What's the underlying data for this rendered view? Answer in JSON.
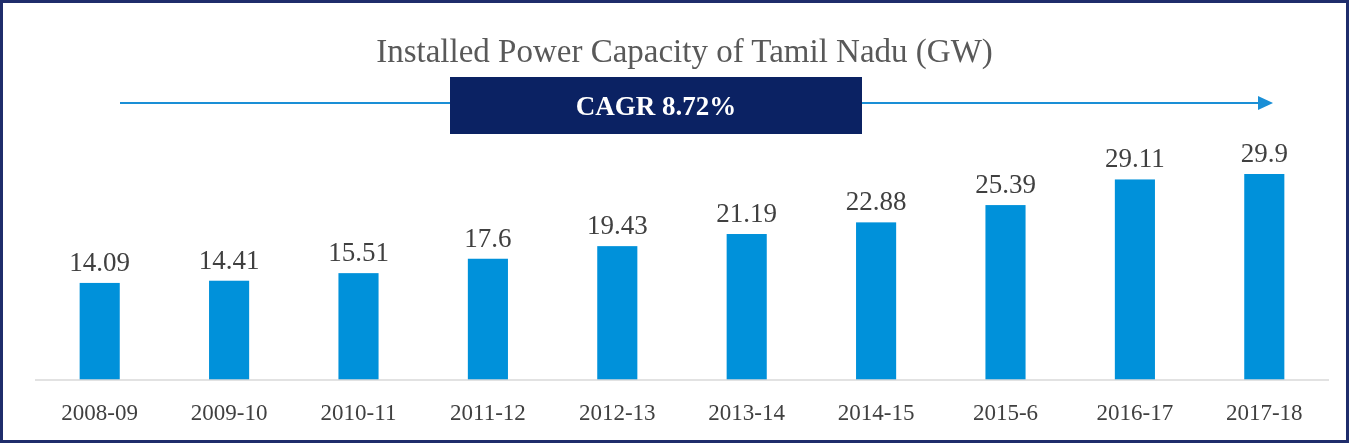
{
  "chart_data": {
    "type": "bar",
    "title": "Installed Power Capacity of Tamil Nadu (GW)",
    "annotations": [
      "CAGR 8.72%"
    ],
    "categories": [
      "2008-09",
      "2009-10",
      "2010-11",
      "2011-12",
      "2012-13",
      "2013-14",
      "2014-15",
      "2015-6",
      "2016-17",
      "2017-18"
    ],
    "values": [
      14.09,
      14.41,
      15.51,
      17.6,
      19.43,
      21.19,
      22.88,
      25.39,
      29.11,
      29.9
    ],
    "color": "#0091da",
    "data_labels": true
  }
}
